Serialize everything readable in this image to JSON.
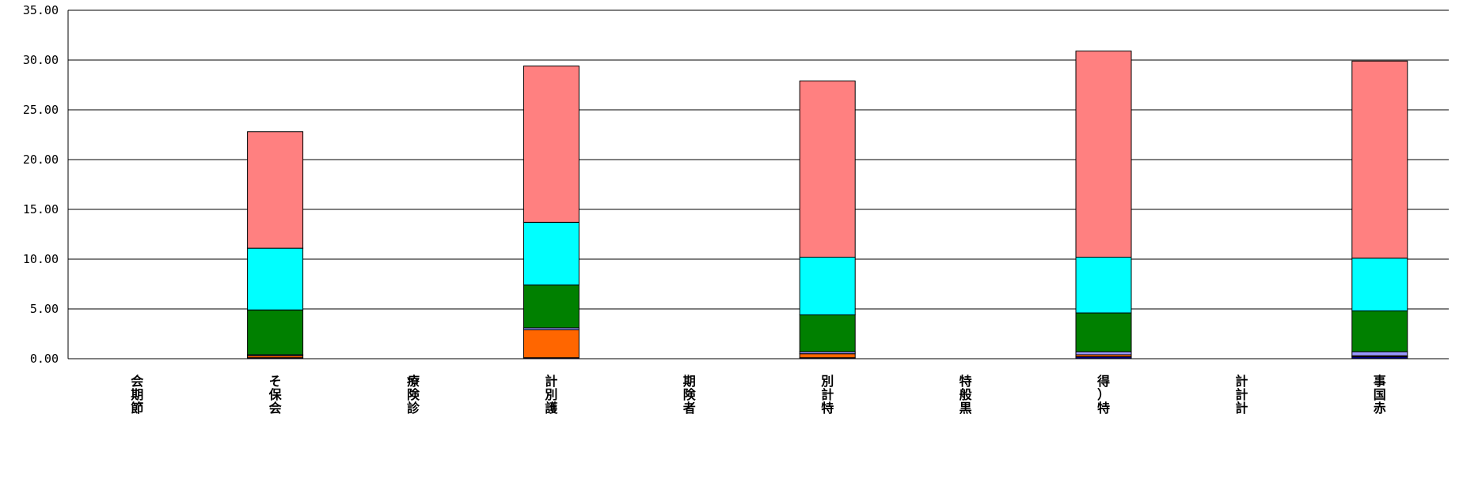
{
  "chart_data": {
    "type": "bar",
    "stacked": true,
    "grid": true,
    "legend": "none",
    "ylim": [
      0,
      35
    ],
    "yticks": [
      "0.00",
      "5.00",
      "10.00",
      "15.00",
      "20.00",
      "25.00",
      "30.00",
      "35.00"
    ],
    "ytick_values": [
      0,
      5,
      10,
      15,
      20,
      25,
      30,
      35
    ],
    "categories": [
      "会期節",
      "そ保会",
      "療険診",
      "計別護",
      "期険者",
      "別計特",
      "特般黒",
      "得）特",
      "計計計",
      "事国赤"
    ],
    "series": [
      {
        "color": "#000080",
        "values": [
          0,
          0.1,
          0,
          0.1,
          0,
          0.1,
          0,
          0.2,
          0,
          0.2
        ]
      },
      {
        "color": "#FF6600",
        "values": [
          0,
          0.2,
          0,
          2.8,
          0,
          0.4,
          0,
          0.2,
          0,
          0.1
        ]
      },
      {
        "color": "#9999FF",
        "values": [
          0,
          0.1,
          0,
          0.2,
          0,
          0.2,
          0,
          0.3,
          0,
          0.4
        ]
      },
      {
        "color": "#008000",
        "values": [
          0,
          4.5,
          0,
          4.3,
          0,
          3.7,
          0,
          3.9,
          0,
          4.1
        ]
      },
      {
        "color": "#00FFFF",
        "values": [
          0,
          6.2,
          0,
          6.3,
          0,
          5.8,
          0,
          5.6,
          0,
          5.3
        ]
      },
      {
        "color": "#FF8080",
        "values": [
          0,
          11.7,
          0,
          15.7,
          0,
          17.7,
          0,
          20.7,
          0,
          19.8
        ]
      }
    ]
  }
}
